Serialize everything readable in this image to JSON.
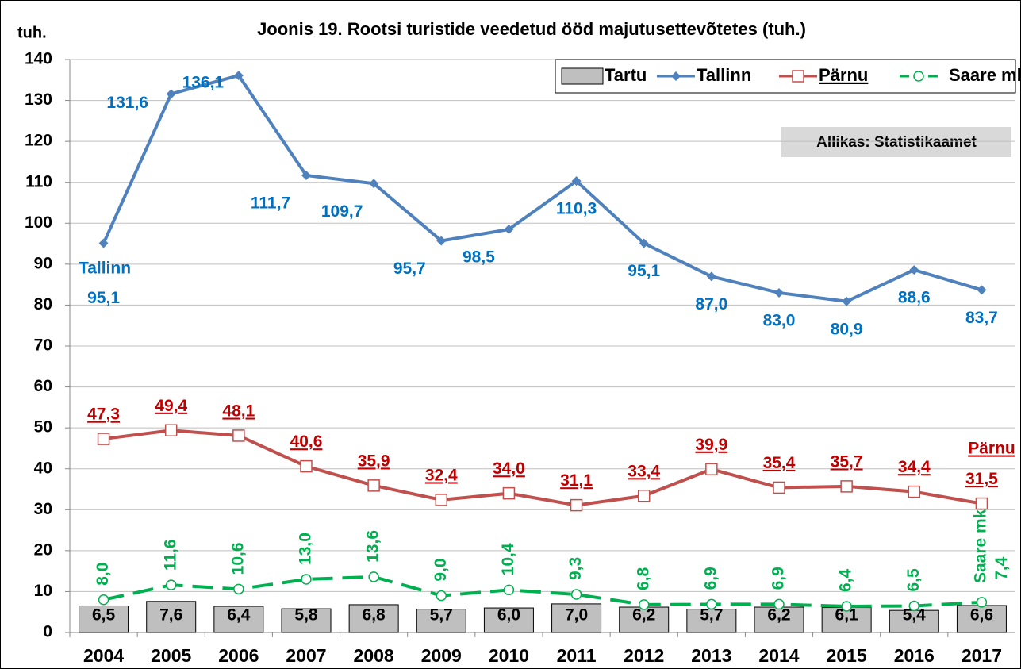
{
  "chart_data": {
    "type": "combo",
    "title": "Joonis 19. Rootsi turistide veedetud ööd majutusettevõtetes (tuh.)",
    "y_axis_label": "tuh.",
    "annotations": {
      "source": "Allikas: Statistikaamet",
      "tallinn": "Tallinn",
      "parnu": "Pärnu",
      "saare": "Saare mk"
    },
    "categories": [
      "2004",
      "2005",
      "2006",
      "2007",
      "2008",
      "2009",
      "2010",
      "2011",
      "2012",
      "2013",
      "2014",
      "2015",
      "2016",
      "2017"
    ],
    "ylim": [
      0,
      140
    ],
    "yticks": [
      0,
      10,
      20,
      30,
      40,
      50,
      60,
      70,
      80,
      90,
      100,
      110,
      120,
      130,
      140
    ],
    "grid": true,
    "legend": "upper right",
    "series": [
      {
        "name": "Tartu",
        "type": "bar",
        "color": "#bfbfbf",
        "values": [
          6.5,
          7.6,
          6.4,
          5.8,
          6.8,
          5.7,
          6.0,
          7.0,
          6.2,
          5.7,
          6.2,
          6.1,
          5.4,
          6.6
        ],
        "value_labels": [
          "6,5",
          "7,6",
          "6,4",
          "5,8",
          "6,8",
          "5,7",
          "6,0",
          "7,0",
          "6,2",
          "5,7",
          "6,2",
          "6,1",
          "5,4",
          "6,6"
        ]
      },
      {
        "name": "Tallinn",
        "type": "line",
        "marker": "diamond",
        "color": "#4f81bd",
        "label_color": "#0070c0",
        "values": [
          95.1,
          131.6,
          136.1,
          111.7,
          109.7,
          95.7,
          98.5,
          110.3,
          95.1,
          87.0,
          83.0,
          80.9,
          88.6,
          83.7
        ],
        "value_labels": [
          "95,1",
          "131,6",
          "136,1",
          "111,7",
          "109,7",
          "95,7",
          "98,5",
          "110,3",
          "95,1",
          "87,0",
          "83,0",
          "80,9",
          "88,6",
          "83,7"
        ]
      },
      {
        "name": "Pärnu",
        "type": "line",
        "marker": "square",
        "color": "#c0504d",
        "label_color": "#c00000",
        "label_underline": true,
        "values": [
          47.3,
          49.4,
          48.1,
          40.6,
          35.9,
          32.4,
          34.0,
          31.1,
          33.4,
          39.9,
          35.4,
          35.7,
          34.4,
          31.5
        ],
        "value_labels": [
          "47,3",
          "49,4",
          "48,1",
          "40,6",
          "35,9",
          "32,4",
          "34,0",
          "31,1",
          "33,4",
          "39,9",
          "35,4",
          "35,7",
          "34,4",
          "31,5"
        ]
      },
      {
        "name": "Saare mk",
        "type": "line",
        "marker": "circle",
        "line_style": "dashed",
        "color": "#00b050",
        "label_color": "#00b050",
        "label_rotate": true,
        "values": [
          8.0,
          11.6,
          10.6,
          13.0,
          13.6,
          9.0,
          10.4,
          9.3,
          6.8,
          6.9,
          6.9,
          6.4,
          6.5,
          7.4
        ],
        "value_labels": [
          "8,0",
          "11,6",
          "10,6",
          "13,0",
          "13,6",
          "9,0",
          "10,4",
          "9,3",
          "6,8",
          "6,9",
          "6,9",
          "6,4",
          "6,5",
          "7,4"
        ]
      }
    ]
  }
}
